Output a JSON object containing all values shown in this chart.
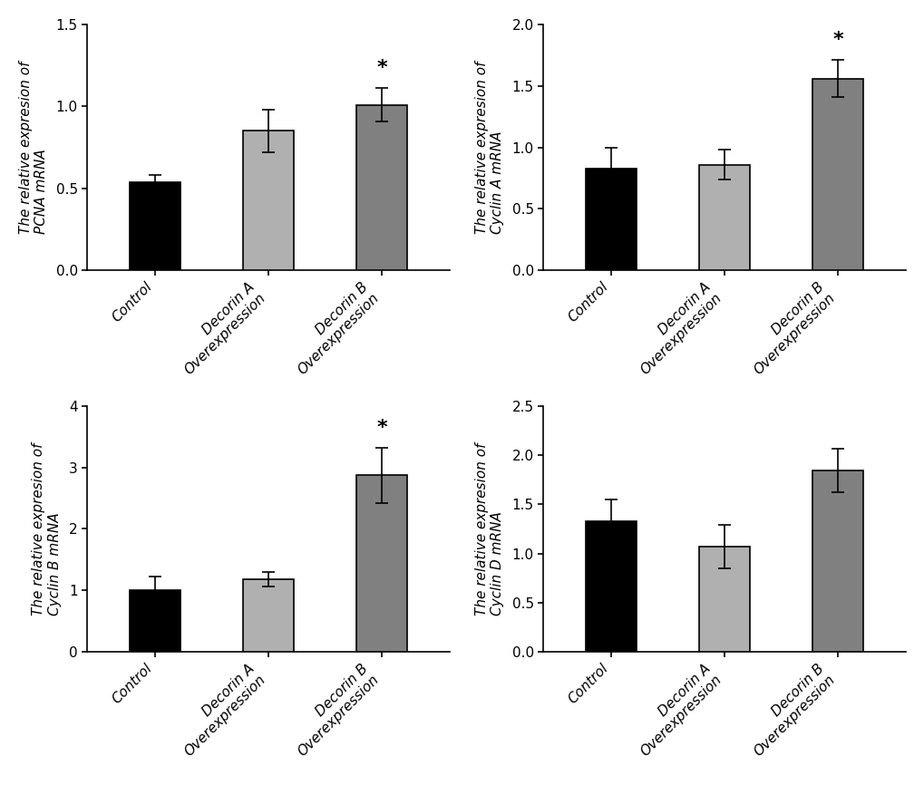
{
  "subplots": [
    {
      "ylabel_line1": "The relative expresion of",
      "ylabel_line2": "PCNA mRNA",
      "values": [
        0.54,
        0.85,
        1.01
      ],
      "errors": [
        0.04,
        0.13,
        0.1
      ],
      "ylim": [
        0,
        1.5
      ],
      "yticks": [
        0.0,
        0.5,
        1.0,
        1.5
      ],
      "sig": [
        false,
        false,
        true
      ]
    },
    {
      "ylabel_line1": "The relative expresion of",
      "ylabel_line2": "Cyclin A mRNA",
      "values": [
        0.83,
        0.86,
        1.56
      ],
      "errors": [
        0.17,
        0.12,
        0.15
      ],
      "ylim": [
        0,
        2.0
      ],
      "yticks": [
        0.0,
        0.5,
        1.0,
        1.5,
        2.0
      ],
      "sig": [
        false,
        false,
        true
      ]
    },
    {
      "ylabel_line1": "The relative expresion of",
      "ylabel_line2": "Cyclin B mRNA",
      "values": [
        1.0,
        1.18,
        2.87
      ],
      "errors": [
        0.22,
        0.12,
        0.45
      ],
      "ylim": [
        0,
        4
      ],
      "yticks": [
        0,
        1,
        2,
        3,
        4
      ],
      "sig": [
        false,
        false,
        true
      ]
    },
    {
      "ylabel_line1": "The relative expresion of",
      "ylabel_line2": "Cyclin D mRNA",
      "values": [
        1.33,
        1.07,
        1.84
      ],
      "errors": [
        0.22,
        0.22,
        0.22
      ],
      "ylim": [
        0,
        2.5
      ],
      "yticks": [
        0.0,
        0.5,
        1.0,
        1.5,
        2.0,
        2.5
      ],
      "sig": [
        false,
        false,
        false
      ]
    }
  ],
  "categories": [
    "Control",
    "Decorin A\nOverexpression",
    "Decorin B\nOverexpression"
  ],
  "bar_colors": [
    "#000000",
    "#b0b0b0",
    "#808080"
  ],
  "bar_edgecolor": "#000000",
  "bar_width": 0.45,
  "figsize": [
    10.2,
    8.77
  ],
  "dpi": 100,
  "background_color": "#ffffff",
  "tick_fontsize": 11,
  "label_fontsize": 11,
  "sig_fontsize": 16
}
